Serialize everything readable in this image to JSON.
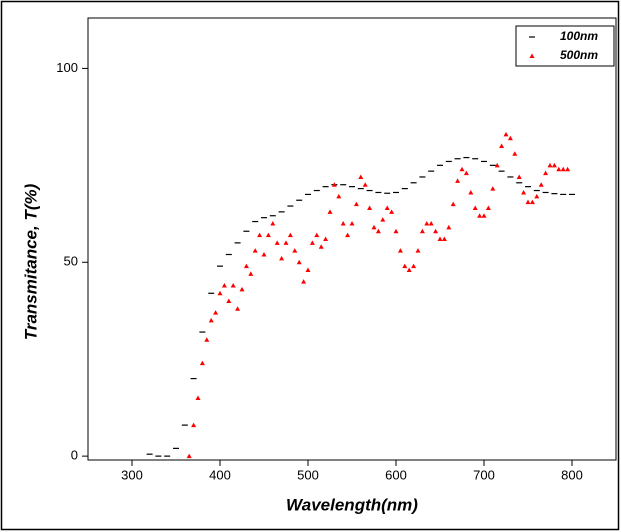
{
  "chart_data": {
    "type": "scatter",
    "xlabel": "Wavelength(nm)",
    "ylabel": "Transmitance, T(%)",
    "xlim": [
      250,
      850
    ],
    "ylim": [
      -1,
      113
    ],
    "xticks": [
      300,
      400,
      500,
      600,
      700,
      800
    ],
    "yticks": [
      0,
      50,
      100
    ],
    "legend": "top-right",
    "series": [
      {
        "name": "100nm",
        "color": "#000000",
        "marker": "dash",
        "x": [
          320,
          330,
          340,
          350,
          360,
          370,
          380,
          390,
          400,
          410,
          420,
          430,
          440,
          450,
          460,
          470,
          480,
          490,
          500,
          510,
          520,
          530,
          540,
          550,
          560,
          570,
          580,
          590,
          600,
          610,
          620,
          630,
          640,
          650,
          660,
          670,
          680,
          690,
          700,
          710,
          720,
          730,
          740,
          750,
          760,
          770,
          780,
          790,
          800
        ],
        "values": [
          0.5,
          0,
          0,
          2,
          8,
          20,
          32,
          42,
          49,
          52,
          55,
          58,
          60.5,
          61.5,
          62,
          63,
          64.5,
          66,
          67.5,
          68.5,
          69.5,
          70,
          70,
          69.5,
          69,
          68.5,
          68,
          67.8,
          68,
          69,
          70.5,
          72,
          73.5,
          75,
          76,
          76.7,
          77,
          76.7,
          76,
          75,
          73.5,
          72,
          70.5,
          69.5,
          68.5,
          68,
          67.7,
          67.5,
          67.5
        ]
      },
      {
        "name": "500nm",
        "color": "#ff0000",
        "marker": "triangle",
        "x": [
          365,
          370,
          375,
          380,
          385,
          390,
          395,
          400,
          405,
          410,
          415,
          420,
          425,
          430,
          435,
          440,
          445,
          450,
          455,
          460,
          465,
          470,
          475,
          480,
          485,
          490,
          495,
          500,
          505,
          510,
          515,
          520,
          525,
          530,
          535,
          540,
          545,
          550,
          555,
          560,
          565,
          570,
          575,
          580,
          585,
          590,
          595,
          600,
          605,
          610,
          615,
          620,
          625,
          630,
          635,
          640,
          645,
          650,
          655,
          660,
          665,
          670,
          675,
          680,
          685,
          690,
          695,
          700,
          705,
          710,
          715,
          720,
          725,
          730,
          735,
          740,
          745,
          750,
          755,
          760,
          765,
          770,
          775,
          780,
          785,
          790,
          795
        ],
        "values": [
          0,
          8,
          15,
          24,
          30,
          35,
          37,
          42,
          44,
          40,
          44,
          38,
          43,
          49,
          47,
          53,
          57,
          52,
          57,
          60,
          55,
          51,
          55,
          57,
          53,
          50,
          45,
          48,
          55,
          57,
          54,
          56,
          63,
          70,
          67,
          60,
          57,
          60,
          65,
          72,
          70,
          64,
          59,
          58,
          61,
          64,
          63,
          58,
          53,
          49,
          48,
          49,
          53,
          58,
          60,
          60,
          58,
          56,
          56,
          59,
          65,
          71,
          74,
          73,
          68,
          64,
          62,
          62,
          64,
          69,
          75,
          80,
          83,
          82,
          78,
          72,
          68,
          65.5,
          65.5,
          67,
          70,
          73,
          75,
          75,
          74,
          74,
          74
        ]
      }
    ]
  }
}
